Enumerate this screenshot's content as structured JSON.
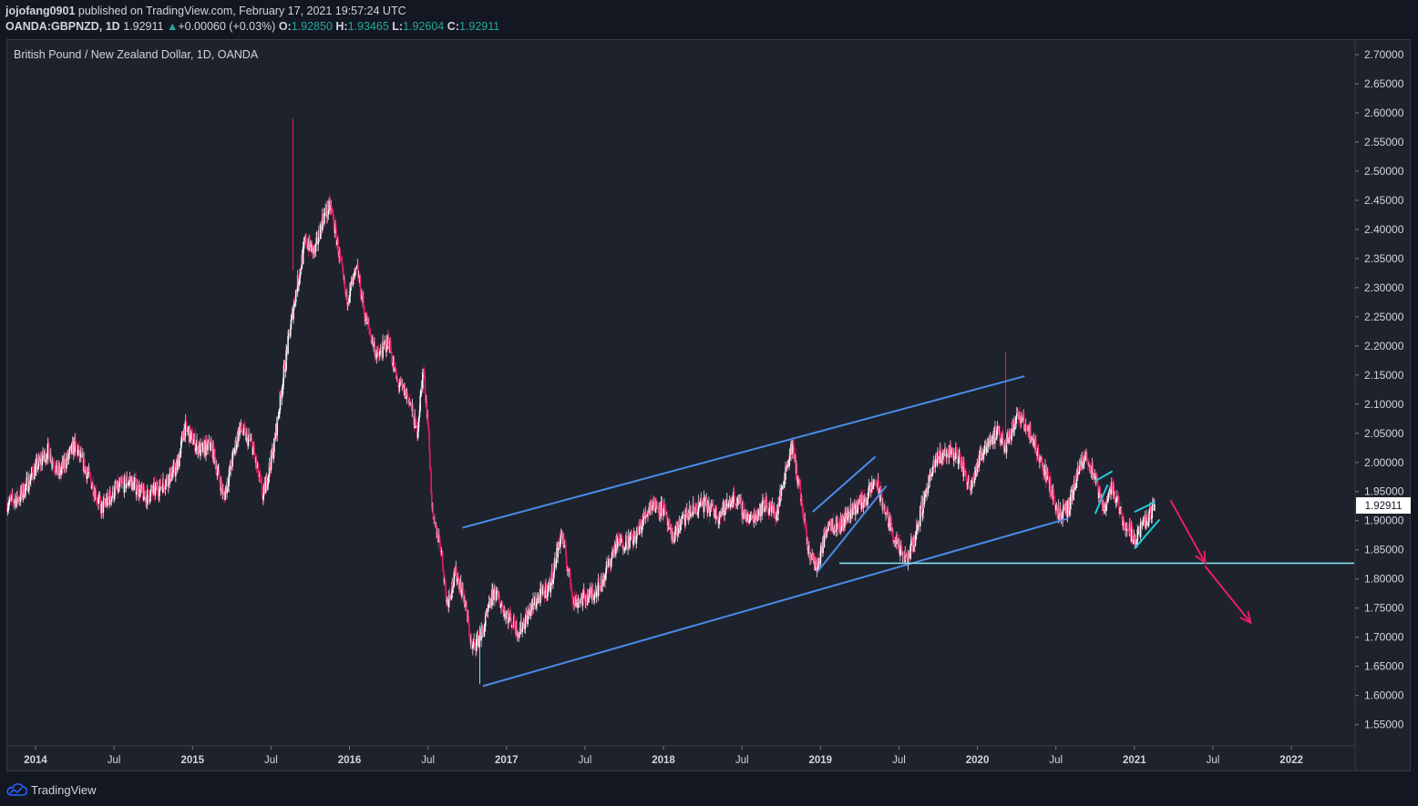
{
  "header": {
    "author": "jojofang0901",
    "published_text": "published on TradingView.com, February 17, 2021 19:57:24 UTC",
    "symbol": "OANDA:GBPNZD, 1D",
    "last_price": "1.92911",
    "change": "+0.00060 (+0.03%)",
    "open_label": "O:",
    "open": "1.92850",
    "high_label": "H:",
    "high": "1.93465",
    "low_label": "L:",
    "low": "1.92604",
    "close_label": "C:",
    "close": "1.92911"
  },
  "footer": {
    "brand": "TradingView"
  },
  "colors": {
    "up": "#ffffff",
    "down": "#e91e63",
    "channel": "#4a8ce8",
    "wedge": "#26c6da",
    "support": "#80deea",
    "arrow": "#e91e63",
    "price_tag_bg": "#ffffff"
  },
  "chart_data": {
    "type": "candlestick",
    "title": "British Pound / New Zealand Dollar, 1D, OANDA",
    "current_price_label": "1.92911",
    "ylim": [
      1.515,
      2.725
    ],
    "xlim": [
      2013.82,
      2022.4
    ],
    "y_ticks": [
      "2.70000",
      "2.65000",
      "2.60000",
      "2.55000",
      "2.50000",
      "2.45000",
      "2.40000",
      "2.35000",
      "2.30000",
      "2.25000",
      "2.20000",
      "2.15000",
      "2.10000",
      "2.05000",
      "2.00000",
      "1.95000",
      "1.90000",
      "1.85000",
      "1.80000",
      "1.75000",
      "1.70000",
      "1.65000",
      "1.60000",
      "1.55000"
    ],
    "x_ticks": [
      {
        "t": 2014.0,
        "label": "2014",
        "major": true
      },
      {
        "t": 2014.5,
        "label": "Jul",
        "major": false
      },
      {
        "t": 2015.0,
        "label": "2015",
        "major": true
      },
      {
        "t": 2015.5,
        "label": "Jul",
        "major": false
      },
      {
        "t": 2016.0,
        "label": "2016",
        "major": true
      },
      {
        "t": 2016.5,
        "label": "Jul",
        "major": false
      },
      {
        "t": 2017.0,
        "label": "2017",
        "major": true
      },
      {
        "t": 2017.5,
        "label": "Jul",
        "major": false
      },
      {
        "t": 2018.0,
        "label": "2018",
        "major": true
      },
      {
        "t": 2018.5,
        "label": "Jul",
        "major": false
      },
      {
        "t": 2019.0,
        "label": "2019",
        "major": true
      },
      {
        "t": 2019.5,
        "label": "Jul",
        "major": false
      },
      {
        "t": 2020.0,
        "label": "2020",
        "major": true
      },
      {
        "t": 2020.5,
        "label": "Jul",
        "major": false
      },
      {
        "t": 2021.0,
        "label": "2021",
        "major": true
      },
      {
        "t": 2021.5,
        "label": "Jul",
        "major": false
      },
      {
        "t": 2022.0,
        "label": "2022",
        "major": true
      }
    ],
    "price_path": [
      [
        2013.82,
        1.93
      ],
      [
        2013.9,
        1.94
      ],
      [
        2014.0,
        1.99
      ],
      [
        2014.08,
        2.02
      ],
      [
        2014.15,
        1.98
      ],
      [
        2014.25,
        2.03
      ],
      [
        2014.35,
        1.97
      ],
      [
        2014.42,
        1.92
      ],
      [
        2014.5,
        1.95
      ],
      [
        2014.6,
        1.97
      ],
      [
        2014.7,
        1.94
      ],
      [
        2014.8,
        1.96
      ],
      [
        2014.9,
        1.99
      ],
      [
        2014.95,
        2.06
      ],
      [
        2015.0,
        2.04
      ],
      [
        2015.05,
        2.02
      ],
      [
        2015.12,
        2.03
      ],
      [
        2015.2,
        1.94
      ],
      [
        2015.3,
        2.06
      ],
      [
        2015.38,
        2.03
      ],
      [
        2015.45,
        1.94
      ],
      [
        2015.52,
        2.03
      ],
      [
        2015.58,
        2.15
      ],
      [
        2015.65,
        2.28
      ],
      [
        2015.72,
        2.38
      ],
      [
        2015.78,
        2.36
      ],
      [
        2015.83,
        2.42
      ],
      [
        2015.88,
        2.44
      ],
      [
        2015.92,
        2.38
      ],
      [
        2015.98,
        2.28
      ],
      [
        2016.05,
        2.33
      ],
      [
        2016.1,
        2.25
      ],
      [
        2016.18,
        2.18
      ],
      [
        2016.25,
        2.21
      ],
      [
        2016.3,
        2.14
      ],
      [
        2016.38,
        2.11
      ],
      [
        2016.43,
        2.05
      ],
      [
        2016.47,
        2.16
      ],
      [
        2016.5,
        2.07
      ],
      [
        2016.53,
        1.9
      ],
      [
        2016.58,
        1.86
      ],
      [
        2016.62,
        1.76
      ],
      [
        2016.68,
        1.81
      ],
      [
        2016.73,
        1.77
      ],
      [
        2016.78,
        1.68
      ],
      [
        2016.85,
        1.71
      ],
      [
        2016.92,
        1.78
      ],
      [
        2017.0,
        1.74
      ],
      [
        2017.08,
        1.71
      ],
      [
        2017.18,
        1.76
      ],
      [
        2017.28,
        1.79
      ],
      [
        2017.35,
        1.88
      ],
      [
        2017.43,
        1.76
      ],
      [
        2017.52,
        1.77
      ],
      [
        2017.6,
        1.79
      ],
      [
        2017.7,
        1.86
      ],
      [
        2017.82,
        1.87
      ],
      [
        2017.92,
        1.93
      ],
      [
        2018.0,
        1.92
      ],
      [
        2018.05,
        1.87
      ],
      [
        2018.15,
        1.91
      ],
      [
        2018.25,
        1.93
      ],
      [
        2018.35,
        1.91
      ],
      [
        2018.45,
        1.94
      ],
      [
        2018.55,
        1.9
      ],
      [
        2018.65,
        1.93
      ],
      [
        2018.72,
        1.91
      ],
      [
        2018.78,
        1.99
      ],
      [
        2018.82,
        2.03
      ],
      [
        2018.87,
        1.95
      ],
      [
        2018.92,
        1.85
      ],
      [
        2018.98,
        1.82
      ],
      [
        2019.05,
        1.9
      ],
      [
        2019.12,
        1.89
      ],
      [
        2019.2,
        1.92
      ],
      [
        2019.3,
        1.94
      ],
      [
        2019.35,
        1.97
      ],
      [
        2019.42,
        1.91
      ],
      [
        2019.5,
        1.85
      ],
      [
        2019.55,
        1.83
      ],
      [
        2019.6,
        1.87
      ],
      [
        2019.68,
        1.96
      ],
      [
        2019.75,
        2.01
      ],
      [
        2019.82,
        2.02
      ],
      [
        2019.88,
        2.01
      ],
      [
        2019.95,
        1.96
      ],
      [
        2020.05,
        2.03
      ],
      [
        2020.12,
        2.05
      ],
      [
        2020.18,
        2.03
      ],
      [
        2020.25,
        2.08
      ],
      [
        2020.32,
        2.06
      ],
      [
        2020.38,
        2.02
      ],
      [
        2020.45,
        1.97
      ],
      [
        2020.52,
        1.91
      ],
      [
        2020.58,
        1.92
      ],
      [
        2020.65,
        1.99
      ],
      [
        2020.7,
        2.01
      ],
      [
        2020.75,
        1.97
      ],
      [
        2020.8,
        1.92
      ],
      [
        2020.86,
        1.96
      ],
      [
        2020.93,
        1.9
      ],
      [
        2021.0,
        1.87
      ],
      [
        2021.05,
        1.89
      ],
      [
        2021.1,
        1.91
      ],
      [
        2021.13,
        1.929
      ]
    ],
    "spikes": [
      {
        "t": 2015.64,
        "low": 2.33,
        "high": 2.59
      },
      {
        "t": 2016.83,
        "low": 1.62,
        "high": 1.72
      },
      {
        "t": 2020.18,
        "low": 2.05,
        "high": 2.19
      }
    ],
    "drawings": {
      "channel_upper": [
        [
          2016.72,
          1.888
        ],
        [
          2020.3,
          2.148
        ]
      ],
      "channel_lower": [
        [
          2016.85,
          1.616
        ],
        [
          2020.58,
          1.904
        ]
      ],
      "rising_wedge_2019": [
        [
          [
            2018.95,
            1.915
          ],
          [
            2019.35,
            2.01
          ]
        ],
        [
          [
            2018.98,
            1.812
          ],
          [
            2019.42,
            1.96
          ]
        ]
      ],
      "wedge_2020_a": [
        [
          2020.75,
          1.968
        ],
        [
          2020.86,
          1.985
        ]
      ],
      "wedge_2020_b": [
        [
          2020.75,
          1.912
        ],
        [
          2020.83,
          1.962
        ]
      ],
      "wedge_2021_upper": [
        [
          2021.0,
          1.915
        ],
        [
          2021.13,
          1.932
        ]
      ],
      "wedge_2021_lower": [
        [
          2021.0,
          1.852
        ],
        [
          2021.16,
          1.902
        ]
      ],
      "support": [
        [
          2019.12,
          1.827
        ],
        [
          2022.4,
          1.827
        ]
      ],
      "arrow_1": [
        [
          2021.23,
          1.935
        ],
        [
          2021.45,
          1.828
        ]
      ],
      "arrow_2": [
        [
          2021.45,
          1.822
        ],
        [
          2021.74,
          1.725
        ]
      ]
    }
  }
}
